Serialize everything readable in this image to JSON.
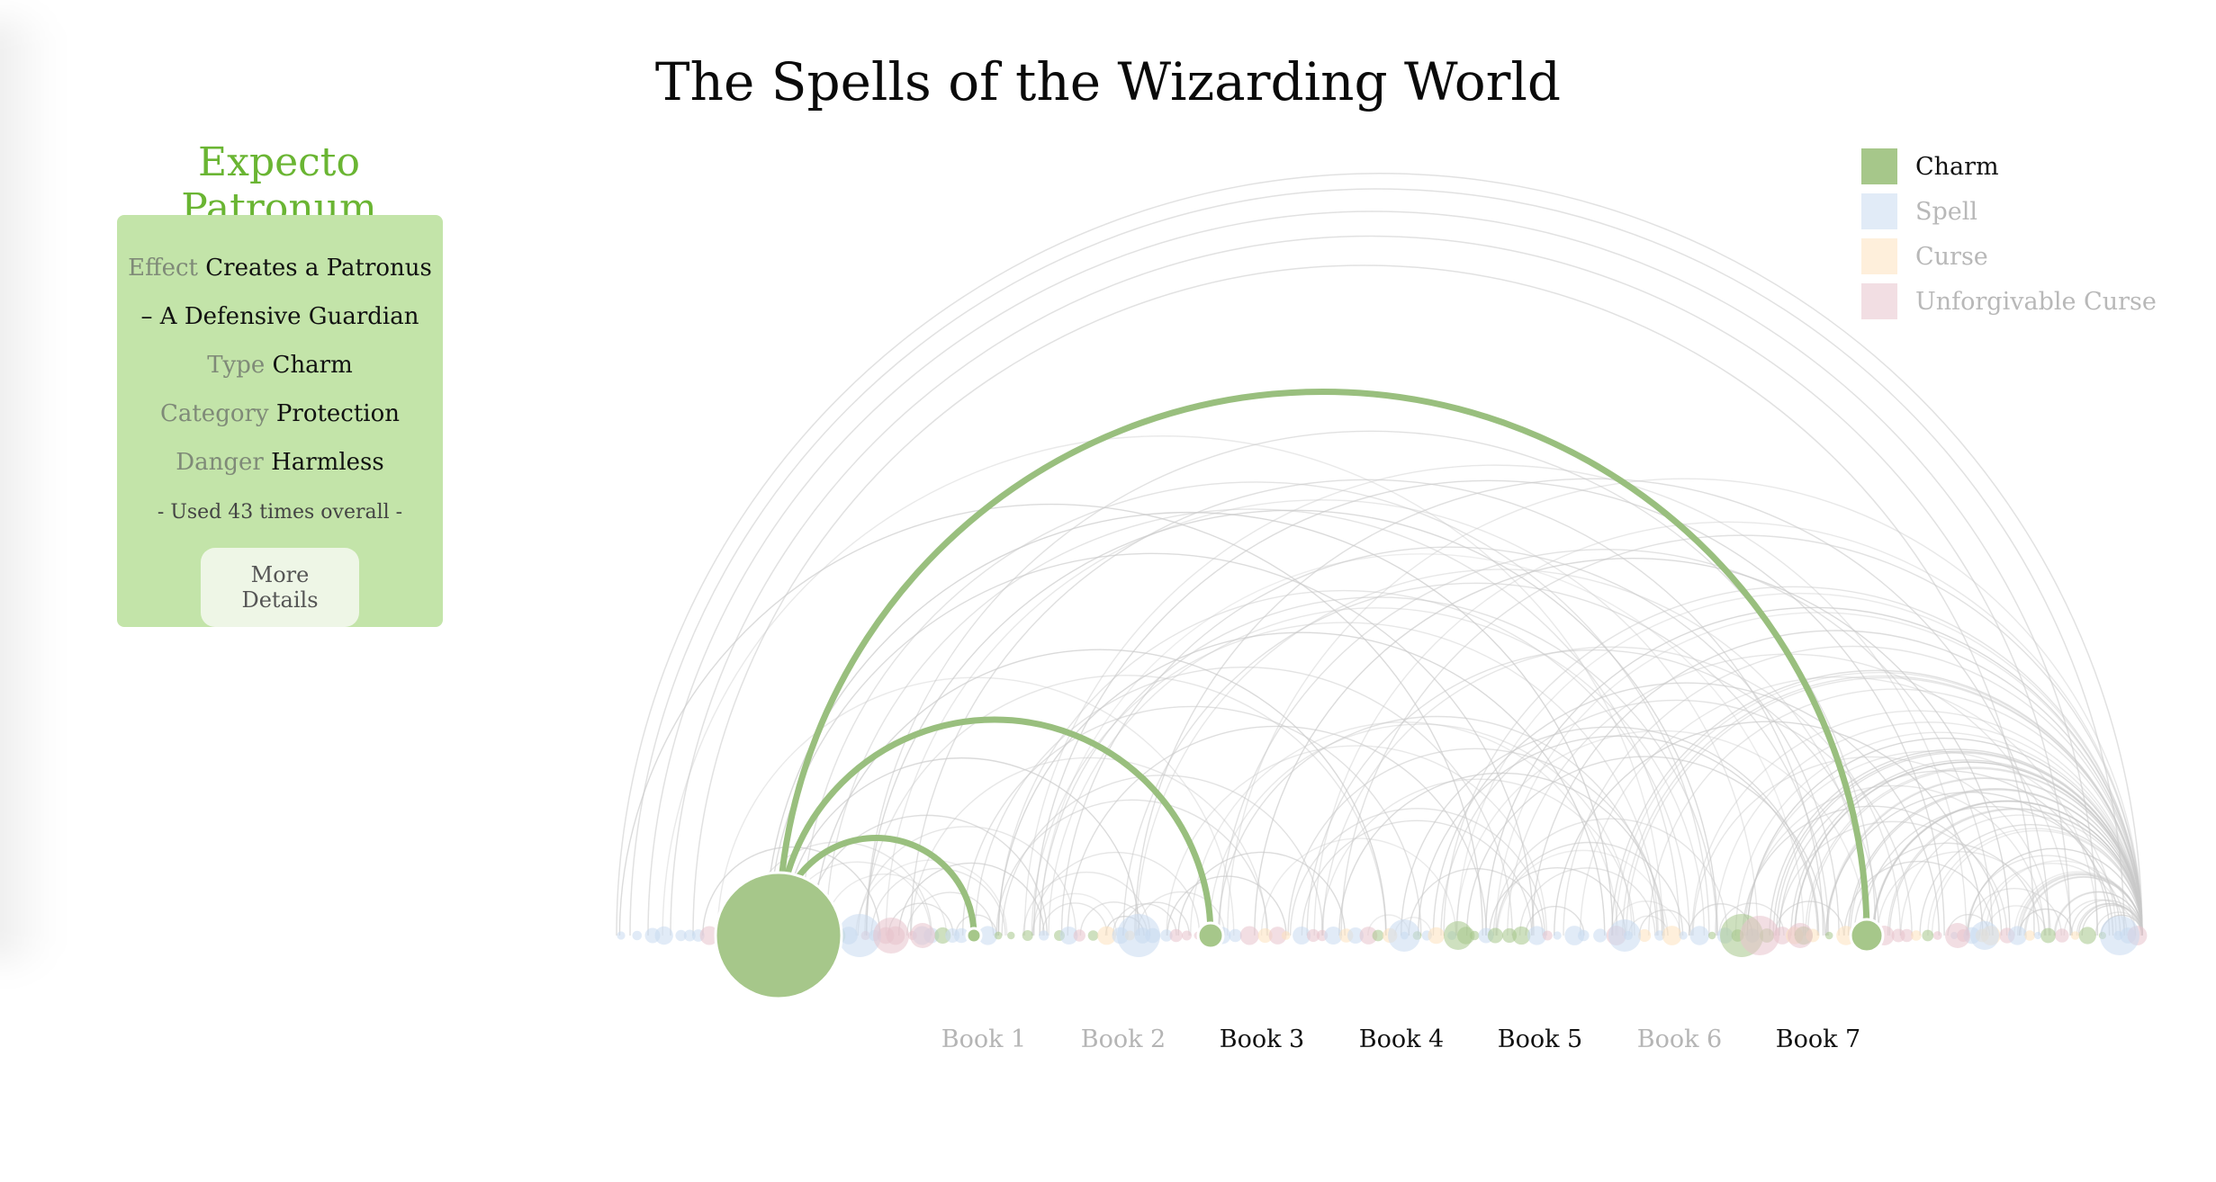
{
  "page": {
    "title": "The Spells of the Wizarding World"
  },
  "selected_spell": {
    "name": "Expecto Patronum",
    "effect_label": "Effect",
    "effect_value": "Creates a Patronus",
    "effect_value_line2": "– A Defensive Guardian",
    "type_label": "Type",
    "type_value": "Charm",
    "category_label": "Category",
    "category_value": "Protection",
    "danger_label": "Danger",
    "danger_value": "Harmless",
    "usage_text": "- Used 43 times overall -",
    "more_button": "More Details",
    "color": "#6ab533"
  },
  "legend": [
    {
      "label": "Charm",
      "color": "#a6c78a",
      "active": true
    },
    {
      "label": "Spell",
      "color": "#c8dbf0",
      "active": false
    },
    {
      "label": "Curse",
      "color": "#fde2bd",
      "active": false
    },
    {
      "label": "Unforgivable Curse",
      "color": "#e8c3cc",
      "active": false
    }
  ],
  "books": [
    {
      "label": "Book 1",
      "active": false
    },
    {
      "label": "Book 2",
      "active": false
    },
    {
      "label": "Book 3",
      "active": true
    },
    {
      "label": "Book 4",
      "active": true
    },
    {
      "label": "Book 5",
      "active": true
    },
    {
      "label": "Book 6",
      "active": false
    },
    {
      "label": "Book 7",
      "active": true
    }
  ],
  "colors": {
    "charm": "#a6c78a",
    "spell": "#c8dbf0",
    "curse": "#fde2bd",
    "unforgivable": "#e8c3cc",
    "highlight_arc": "#99bf7e",
    "background_arc": "#c9c9c9"
  }
}
